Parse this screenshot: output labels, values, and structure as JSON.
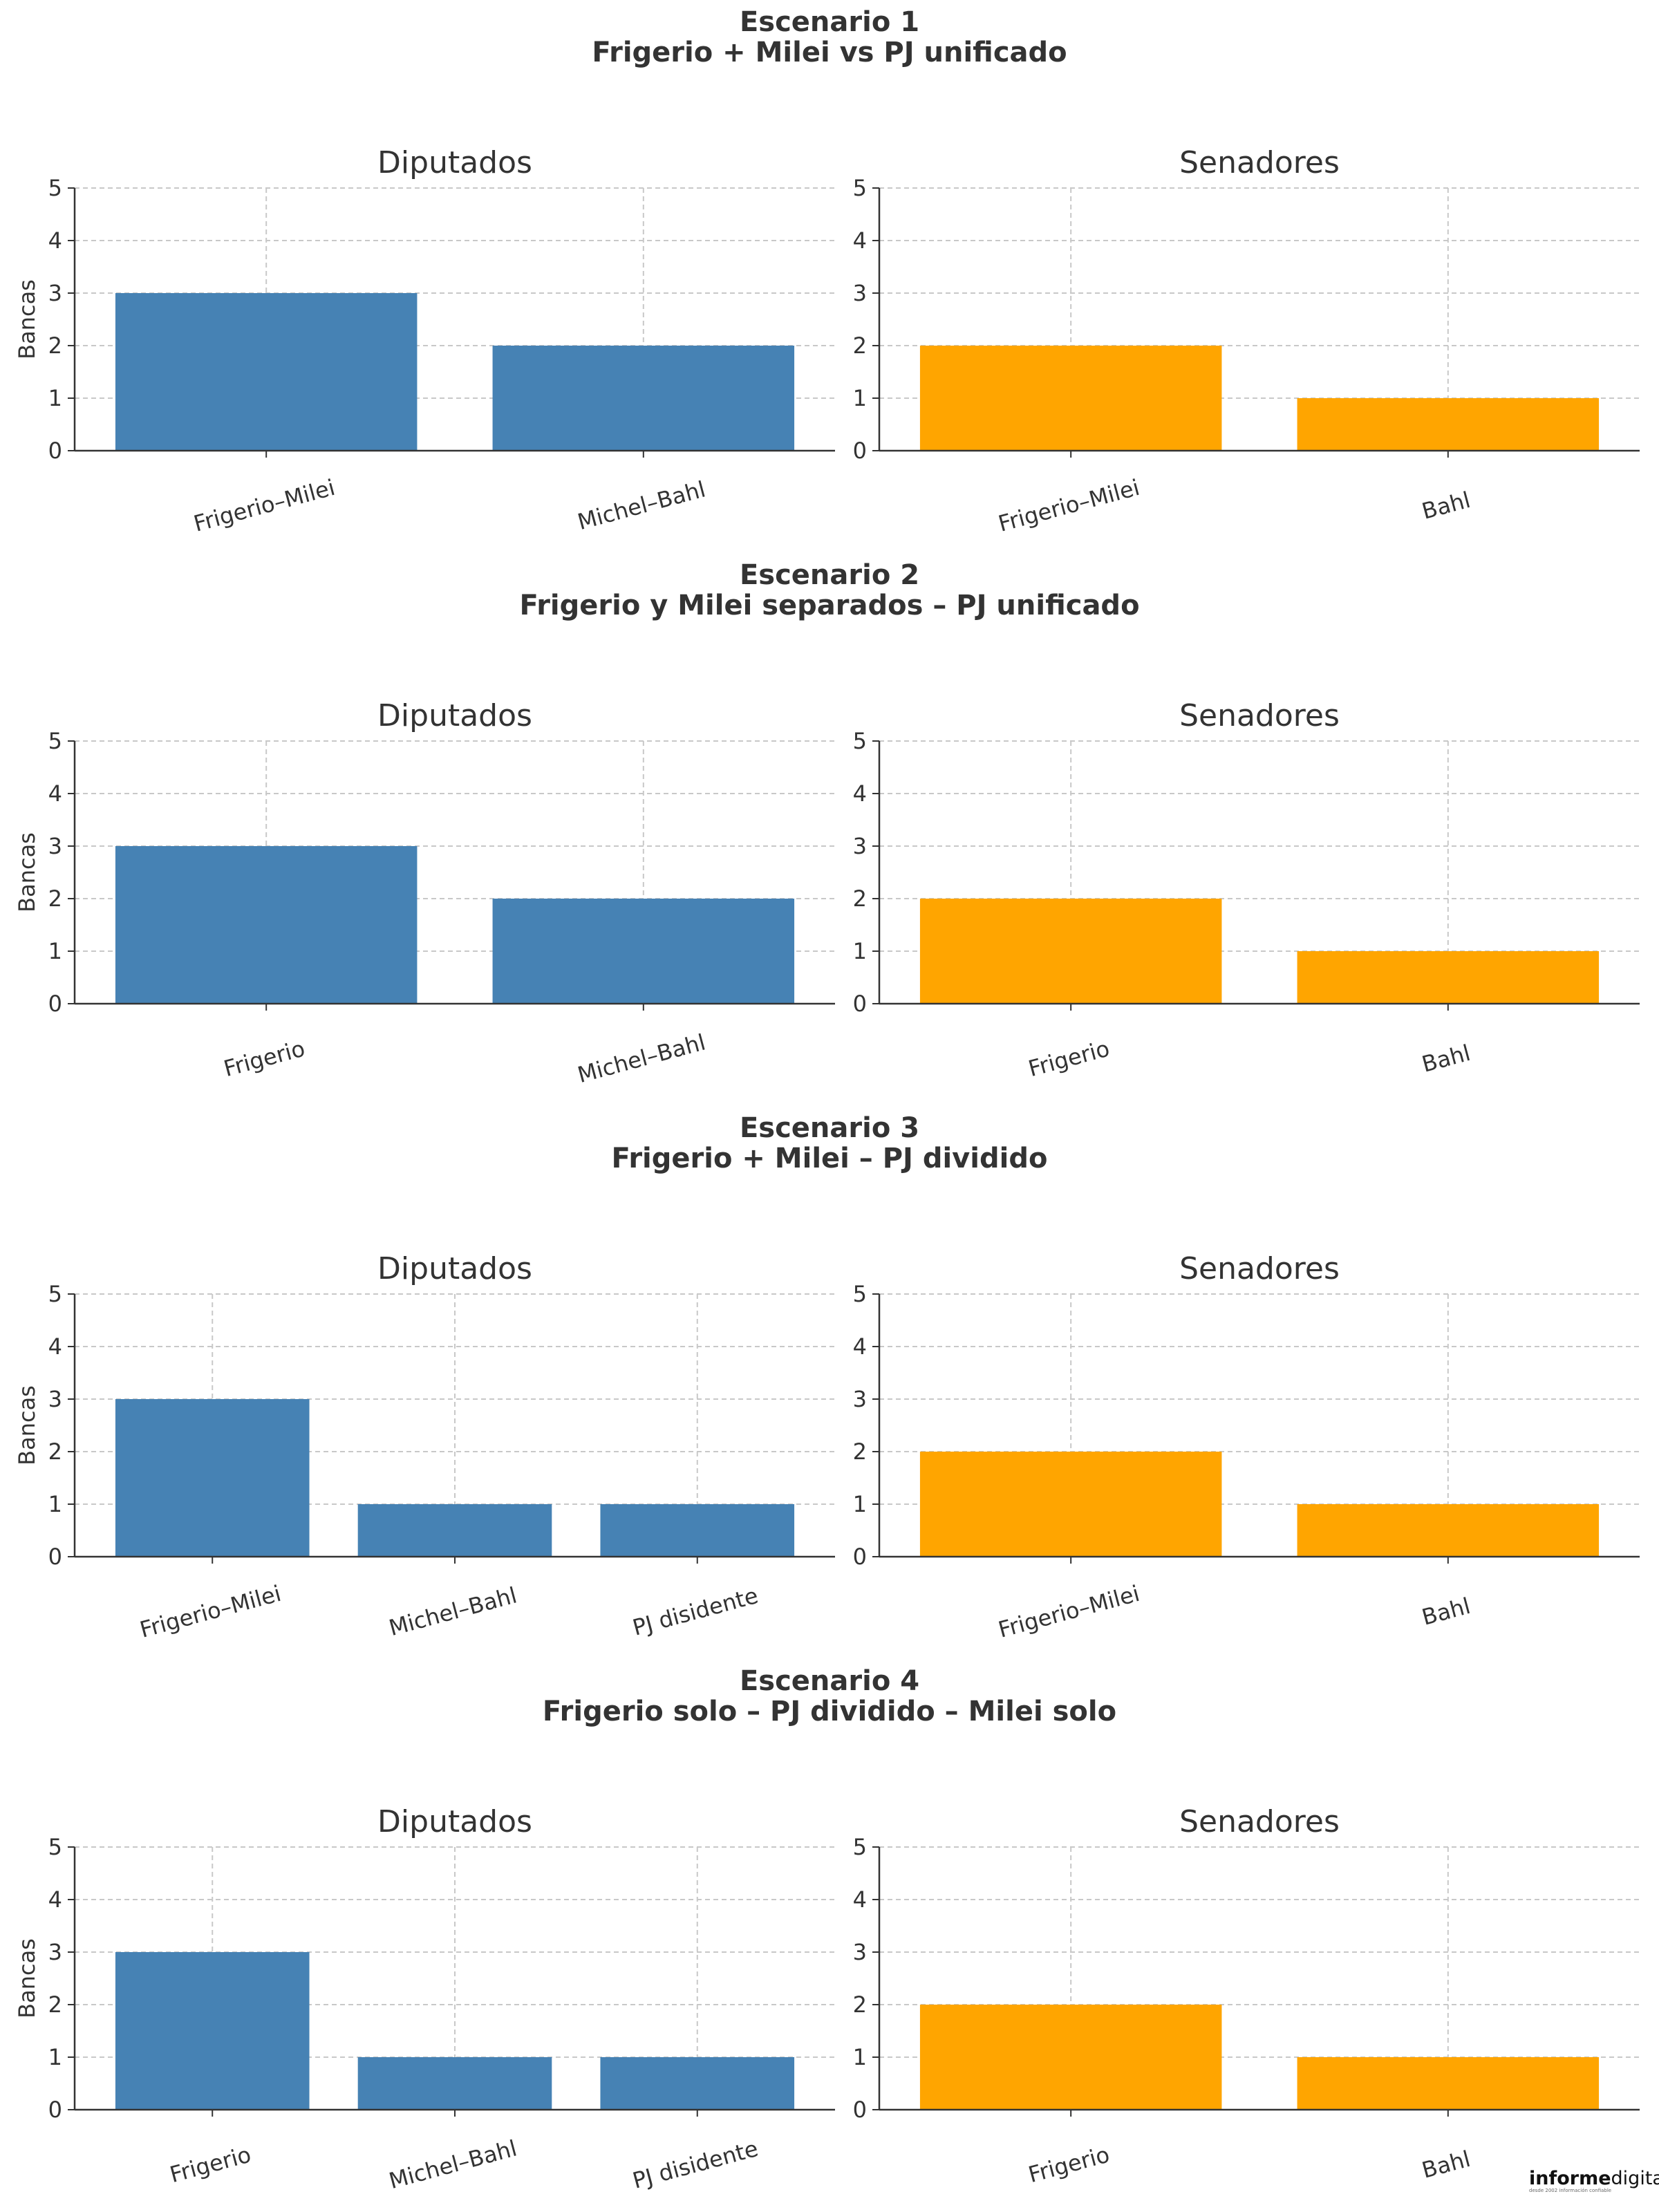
{
  "colors": {
    "diputados": "#4682b4",
    "senadores": "#ffa500",
    "grid": "#c8c8c8",
    "axis": "#333333"
  },
  "logo": {
    "bold": "informe",
    "light": "digital",
    "mark": "®",
    "tagline": "desde 2002 información confiable"
  },
  "chart_data": [
    {
      "type": "bar",
      "scenario_line1": "Escenario 1",
      "scenario_line2": "Frigerio + Milei vs PJ unificado",
      "title": "Diputados",
      "ylabel": "Bancas",
      "ylim": [
        0,
        5
      ],
      "yticks": [
        0,
        1,
        2,
        3,
        4,
        5
      ],
      "grid": true,
      "categories": [
        "Frigerio–Milei",
        "Michel–Bahl"
      ],
      "values": [
        3,
        2
      ],
      "color": "#4682b4"
    },
    {
      "type": "bar",
      "scenario_line1": "Escenario 1",
      "scenario_line2": "Frigerio + Milei vs PJ unificado",
      "title": "Senadores",
      "ylabel": "",
      "ylim": [
        0,
        5
      ],
      "yticks": [
        0,
        1,
        2,
        3,
        4,
        5
      ],
      "grid": true,
      "categories": [
        "Frigerio–Milei",
        "Bahl"
      ],
      "values": [
        2,
        1
      ],
      "color": "#ffa500"
    },
    {
      "type": "bar",
      "scenario_line1": "Escenario 2",
      "scenario_line2": "Frigerio y Milei separados – PJ unificado",
      "title": "Diputados",
      "ylabel": "Bancas",
      "ylim": [
        0,
        5
      ],
      "yticks": [
        0,
        1,
        2,
        3,
        4,
        5
      ],
      "grid": true,
      "categories": [
        "Frigerio",
        "Michel–Bahl"
      ],
      "values": [
        3,
        2
      ],
      "color": "#4682b4"
    },
    {
      "type": "bar",
      "scenario_line1": "Escenario 2",
      "scenario_line2": "Frigerio y Milei separados – PJ unificado",
      "title": "Senadores",
      "ylabel": "",
      "ylim": [
        0,
        5
      ],
      "yticks": [
        0,
        1,
        2,
        3,
        4,
        5
      ],
      "grid": true,
      "categories": [
        "Frigerio",
        "Bahl"
      ],
      "values": [
        2,
        1
      ],
      "color": "#ffa500"
    },
    {
      "type": "bar",
      "scenario_line1": "Escenario 3",
      "scenario_line2": "Frigerio + Milei – PJ dividido",
      "title": "Diputados",
      "ylabel": "Bancas",
      "ylim": [
        0,
        5
      ],
      "yticks": [
        0,
        1,
        2,
        3,
        4,
        5
      ],
      "grid": true,
      "categories": [
        "Frigerio–Milei",
        "Michel–Bahl",
        "PJ disidente"
      ],
      "values": [
        3,
        1,
        1
      ],
      "color": "#4682b4"
    },
    {
      "type": "bar",
      "scenario_line1": "Escenario 3",
      "scenario_line2": "Frigerio + Milei – PJ dividido",
      "title": "Senadores",
      "ylabel": "",
      "ylim": [
        0,
        5
      ],
      "yticks": [
        0,
        1,
        2,
        3,
        4,
        5
      ],
      "grid": true,
      "categories": [
        "Frigerio–Milei",
        "Bahl"
      ],
      "values": [
        2,
        1
      ],
      "color": "#ffa500"
    },
    {
      "type": "bar",
      "scenario_line1": "Escenario 4",
      "scenario_line2": "Frigerio solo – PJ dividido – Milei solo",
      "title": "Diputados",
      "ylabel": "Bancas",
      "ylim": [
        0,
        5
      ],
      "yticks": [
        0,
        1,
        2,
        3,
        4,
        5
      ],
      "grid": true,
      "categories": [
        "Frigerio",
        "Michel–Bahl",
        "PJ disidente"
      ],
      "values": [
        3,
        1,
        1
      ],
      "color": "#4682b4"
    },
    {
      "type": "bar",
      "scenario_line1": "Escenario 4",
      "scenario_line2": "Frigerio solo – PJ dividido – Milei solo",
      "title": "Senadores",
      "ylabel": "",
      "ylim": [
        0,
        5
      ],
      "yticks": [
        0,
        1,
        2,
        3,
        4,
        5
      ],
      "grid": true,
      "categories": [
        "Frigerio",
        "Bahl"
      ],
      "values": [
        2,
        1
      ],
      "color": "#ffa500"
    }
  ]
}
